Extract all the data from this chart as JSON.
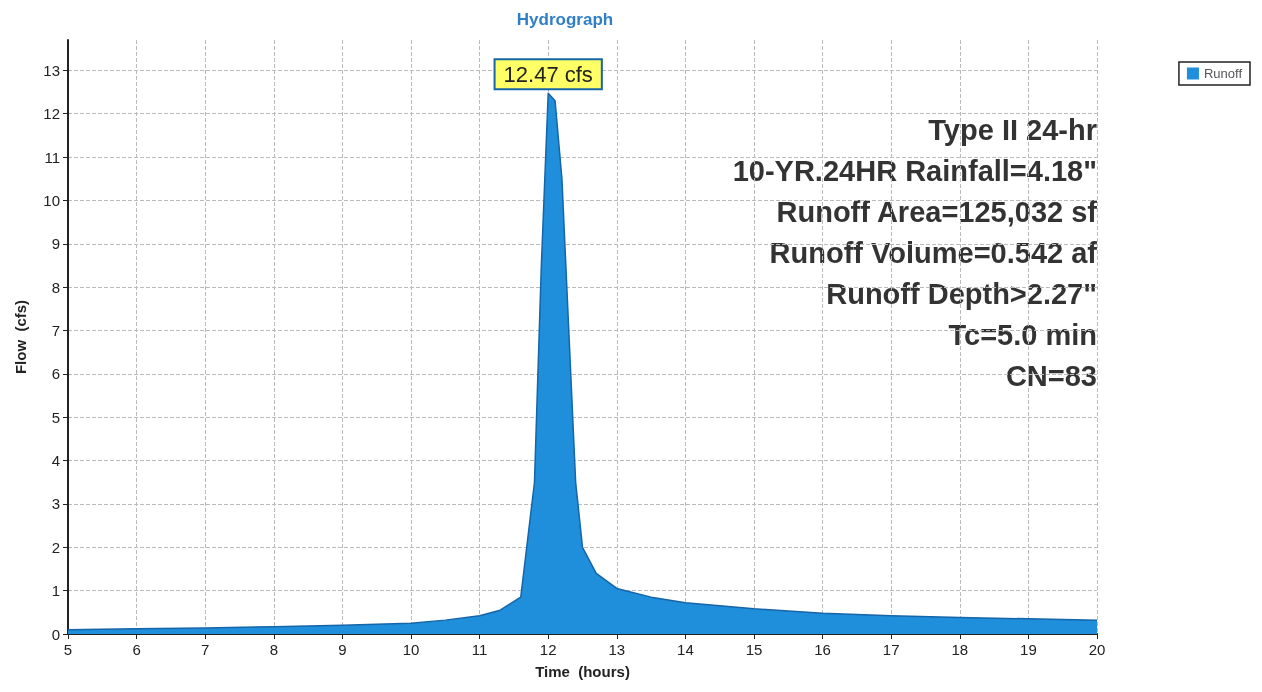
{
  "chart_data": {
    "type": "area",
    "title": "Hydrograph",
    "xlabel": "Time  (hours)",
    "ylabel": "Flow  (cfs)",
    "x": [
      5,
      6,
      7,
      8,
      9,
      10,
      10.5,
      11,
      11.3,
      11.6,
      11.8,
      11.9,
      12,
      12.1,
      12.2,
      12.3,
      12.4,
      12.5,
      12.7,
      13,
      13.5,
      14,
      15,
      16,
      17,
      18,
      19,
      20
    ],
    "series": [
      {
        "name": "Runoff",
        "color": "#1f8fdc",
        "values": [
          0.1,
          0.12,
          0.14,
          0.17,
          0.2,
          0.25,
          0.32,
          0.42,
          0.55,
          0.85,
          3.5,
          8.5,
          12.47,
          12.3,
          10.5,
          7.0,
          3.5,
          2.0,
          1.4,
          1.05,
          0.85,
          0.72,
          0.58,
          0.48,
          0.42,
          0.38,
          0.35,
          0.32
        ],
        "value_labels": [
          null,
          null,
          null,
          null,
          null,
          null,
          null,
          null,
          null,
          null,
          null,
          null,
          "12.47 cfs",
          null,
          null,
          null,
          null,
          null,
          null,
          null,
          null,
          null,
          null,
          null,
          null,
          null,
          null,
          null
        ]
      }
    ],
    "xlim": [
      5,
      20
    ],
    "xticks": [
      5,
      6,
      7,
      8,
      9,
      10,
      11,
      12,
      13,
      14,
      15,
      16,
      17,
      18,
      19,
      20
    ],
    "ylim": [
      0,
      13.7
    ],
    "yticks": [
      0,
      1,
      2,
      3,
      4,
      5,
      6,
      7,
      8,
      9,
      10,
      11,
      12,
      13
    ],
    "grid": true,
    "legend": "top right",
    "marker": "none",
    "annotations": [
      "Type II 24-hr",
      "10-YR.24HR Rainfall=4.18\"",
      "Runoff Area=125,032 sf",
      "Runoff Volume=0.542 af",
      "Runoff Depth>2.27\"",
      "Tc=5.0 min",
      "CN=83"
    ]
  }
}
